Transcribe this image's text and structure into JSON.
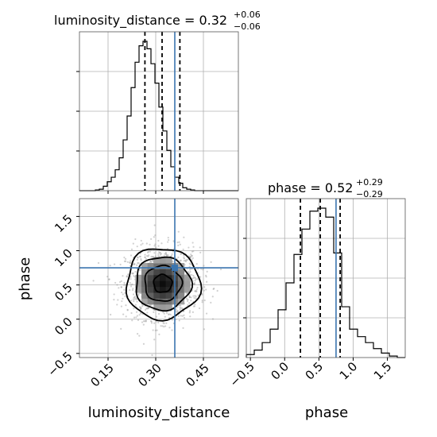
{
  "chart_data": {
    "type": "corner",
    "parameters": [
      "luminosity_distance",
      "phase"
    ],
    "truths": {
      "luminosity_distance": 0.36,
      "phase": 0.75
    },
    "truth_color": "#3b75af",
    "panels": [
      {
        "id": "lumdist_hist",
        "type": "histogram",
        "parameter": "luminosity_distance",
        "title": {
          "main": "luminosity_distance = 0.32",
          "upper": "+0.06",
          "lower": "−0.06"
        },
        "xlim": [
          0.06,
          0.56
        ],
        "quantiles": [
          0.266,
          0.32,
          0.376
        ],
        "bin_edges": [
          0.06,
          0.0725,
          0.085,
          0.0975,
          0.11,
          0.1225,
          0.135,
          0.1475,
          0.16,
          0.1725,
          0.185,
          0.1975,
          0.21,
          0.2225,
          0.235,
          0.2475,
          0.26,
          0.2725,
          0.285,
          0.2975,
          0.31,
          0.3225,
          0.335,
          0.3475,
          0.36,
          0.3725,
          0.385,
          0.3975,
          0.41,
          0.4225,
          0.435,
          0.4475,
          0.46,
          0.4725,
          0.485,
          0.4975,
          0.51,
          0.5225,
          0.535,
          0.5475,
          0.56
        ],
        "counts": [
          0,
          0,
          0,
          0,
          0.5,
          1,
          3,
          6,
          9,
          14,
          22,
          34,
          50,
          69,
          86,
          97,
          100,
          95,
          85,
          72,
          56,
          40,
          27,
          16,
          9,
          5,
          2,
          1,
          0.5,
          0,
          0,
          0,
          0,
          0,
          0,
          0,
          0,
          0,
          0,
          0
        ]
      },
      {
        "id": "joint",
        "type": "2d_density",
        "x_param": "luminosity_distance",
        "y_param": "phase",
        "xlim": [
          0.06,
          0.56
        ],
        "ylim": [
          -0.56,
          1.76
        ],
        "xticks": [
          0.15,
          0.3,
          0.45
        ],
        "yticks": [
          -0.5,
          0.0,
          0.5,
          1.0,
          1.5
        ],
        "xtick_labels": [
          "0.15",
          "0.30",
          "0.45"
        ],
        "ytick_labels": [
          "−0.5",
          "0.0",
          "0.5",
          "1.0",
          "1.5"
        ],
        "center": [
          0.322,
          0.52
        ],
        "contour_sigma": [
          0.5,
          1.0,
          1.5,
          2.0
        ],
        "sigma_x": 0.058,
        "sigma_y": 0.26
      },
      {
        "id": "phase_hist",
        "type": "histogram",
        "parameter": "phase",
        "title": {
          "main": "phase = 0.52",
          "upper": "+0.29",
          "lower": "−0.29"
        },
        "xlim": [
          -0.56,
          1.76
        ],
        "xticks": [
          -0.5,
          0.0,
          0.5,
          1.0,
          1.5
        ],
        "xtick_labels": [
          "−0.5",
          "0.0",
          "0.5",
          "1.0",
          "1.5"
        ],
        "quantiles": [
          0.23,
          0.52,
          0.81
        ],
        "bin_edges": [
          -0.56,
          -0.444,
          -0.328,
          -0.212,
          -0.096,
          0.02,
          0.136,
          0.252,
          0.368,
          0.484,
          0.6,
          0.716,
          0.832,
          0.948,
          1.064,
          1.18,
          1.296,
          1.412,
          1.528,
          1.644,
          1.76
        ],
        "counts": [
          2,
          5,
          10,
          19,
          32,
          50,
          69,
          86,
          98,
          100,
          94,
          70,
          34,
          19,
          14,
          10,
          6,
          3,
          1,
          0
        ]
      }
    ],
    "xlabels": [
      "luminosity_distance",
      "phase"
    ],
    "ylabels": [
      "",
      "phase"
    ]
  }
}
